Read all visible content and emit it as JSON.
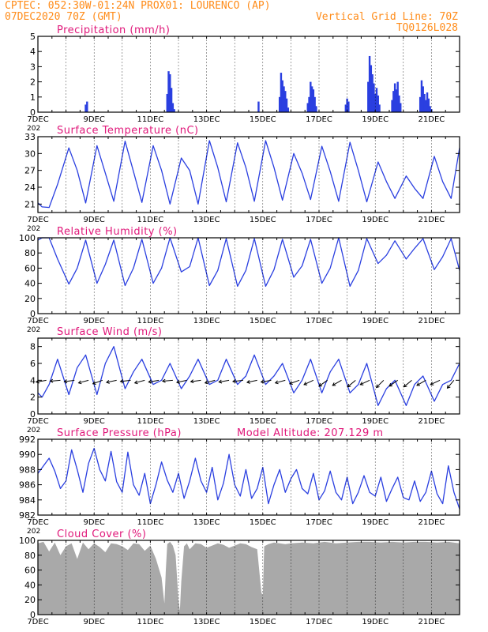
{
  "header": {
    "line1": "CPTEC:   052:30W-01:24N  PROX01: LOURENCO (AP)",
    "line2_left": "07DEC2020 70Z (GMT)",
    "line2_right": "Vertical Grid Line: 70Z",
    "line3_right": "TQ0126L028"
  },
  "colors": {
    "header": "#ff8c1a",
    "title": "#e0187a",
    "series": "#2a3fe0",
    "cloud": "#a9a9a9",
    "frame": "#000000",
    "grid": "#000000"
  },
  "x_axis": {
    "start_day": 7,
    "end_day": 22,
    "tick_labels": [
      "7DEC",
      "9DEC",
      "11DEC",
      "13DEC",
      "15DEC",
      "17DEC",
      "19DEC",
      "21DEC"
    ],
    "tick_days": [
      7,
      9,
      11,
      13,
      15,
      17,
      19,
      21
    ],
    "clipped_year_label": "202"
  },
  "chart_data": [
    {
      "id": "precip",
      "type": "bar",
      "title": "Precipitation (mm/h)",
      "ylim": [
        0,
        5
      ],
      "yticks": [
        0,
        1,
        2,
        3,
        4,
        5
      ],
      "x": [
        8.7,
        8.75,
        11.6,
        11.65,
        11.7,
        11.75,
        11.8,
        11.85,
        14.85,
        15.6,
        15.65,
        15.7,
        15.75,
        15.8,
        15.85,
        15.9,
        16.6,
        16.65,
        16.7,
        16.75,
        16.8,
        16.85,
        16.9,
        17.95,
        18.0,
        18.05,
        18.75,
        18.8,
        18.85,
        18.9,
        18.95,
        19.0,
        19.05,
        19.1,
        19.15,
        19.6,
        19.65,
        19.7,
        19.75,
        19.8,
        19.85,
        19.9,
        20.6,
        20.65,
        20.7,
        20.75,
        20.8,
        20.85,
        20.9,
        20.95,
        21.0
      ],
      "values": [
        0.5,
        0.7,
        1.2,
        2.7,
        2.5,
        1.6,
        0.6,
        0.2,
        0.7,
        1.0,
        2.6,
        2.1,
        1.7,
        1.4,
        0.9,
        0.3,
        0.6,
        1.0,
        2.0,
        1.7,
        1.5,
        1.0,
        0.4,
        0.5,
        0.9,
        0.7,
        2.0,
        3.7,
        3.1,
        2.5,
        1.9,
        1.2,
        1.6,
        1.1,
        0.5,
        0.8,
        1.4,
        1.9,
        1.5,
        2.0,
        1.1,
        0.6,
        1.0,
        2.1,
        1.7,
        1.2,
        0.8,
        1.3,
        0.9,
        0.4,
        0.2
      ]
    },
    {
      "id": "temp",
      "type": "line",
      "title": "Surface Temperature (nC)",
      "ylim": [
        19.5,
        33
      ],
      "yticks": [
        21,
        24,
        27,
        30,
        33
      ],
      "x": [
        7.0,
        7.15,
        7.4,
        7.7,
        8.1,
        8.4,
        8.7,
        9.1,
        9.4,
        9.7,
        10.1,
        10.4,
        10.7,
        11.1,
        11.4,
        11.7,
        12.1,
        12.4,
        12.7,
        13.1,
        13.4,
        13.7,
        14.1,
        14.4,
        14.7,
        15.1,
        15.4,
        15.7,
        16.1,
        16.4,
        16.7,
        17.1,
        17.4,
        17.7,
        18.1,
        18.4,
        18.7,
        19.1,
        19.4,
        19.7,
        20.1,
        20.4,
        20.7,
        21.1,
        21.4,
        21.7,
        22.0
      ],
      "values": [
        21.2,
        20.5,
        20.4,
        24.5,
        31.0,
        27.0,
        21.2,
        31.4,
        26.5,
        21.5,
        32.2,
        26.8,
        21.3,
        31.4,
        27.0,
        21.0,
        29.2,
        27.0,
        21.0,
        32.3,
        27.5,
        21.4,
        31.9,
        27.5,
        21.5,
        32.3,
        27.5,
        21.7,
        30.0,
        26.5,
        21.8,
        31.3,
        26.8,
        21.5,
        32.0,
        27.0,
        21.4,
        28.5,
        25.0,
        22.0,
        26.0,
        23.8,
        22.0,
        29.5,
        25.0,
        22.0,
        31.0
      ]
    },
    {
      "id": "rh",
      "type": "line",
      "title": "Relative Humidity (%)",
      "ylim": [
        0,
        100
      ],
      "yticks": [
        0,
        20,
        40,
        60,
        80,
        100
      ],
      "x": [
        7.0,
        7.15,
        7.4,
        7.7,
        8.1,
        8.4,
        8.7,
        9.1,
        9.4,
        9.7,
        10.1,
        10.4,
        10.7,
        11.1,
        11.4,
        11.7,
        12.1,
        12.4,
        12.7,
        13.1,
        13.4,
        13.7,
        14.1,
        14.4,
        14.7,
        15.1,
        15.4,
        15.7,
        16.1,
        16.4,
        16.7,
        17.1,
        17.4,
        17.7,
        18.1,
        18.4,
        18.7,
        19.1,
        19.4,
        19.7,
        20.1,
        20.4,
        20.7,
        21.1,
        21.4,
        21.7,
        22.0
      ],
      "values": [
        97,
        100,
        100,
        72,
        39,
        60,
        97,
        40,
        65,
        97,
        37,
        60,
        98,
        40,
        60,
        100,
        55,
        62,
        100,
        37,
        57,
        99,
        36,
        57,
        99,
        36,
        58,
        98,
        48,
        63,
        98,
        40,
        60,
        100,
        36,
        57,
        99,
        66,
        77,
        96,
        72,
        86,
        99,
        58,
        75,
        99,
        57
      ]
    },
    {
      "id": "wind",
      "type": "line",
      "title": "Surface Wind (m/s)",
      "ylim": [
        0,
        9
      ],
      "yticks": [
        0,
        2,
        4,
        6,
        8
      ],
      "x": [
        7.0,
        7.15,
        7.4,
        7.7,
        8.1,
        8.4,
        8.7,
        9.1,
        9.4,
        9.7,
        10.1,
        10.4,
        10.7,
        11.1,
        11.4,
        11.7,
        12.1,
        12.4,
        12.7,
        13.1,
        13.4,
        13.7,
        14.1,
        14.4,
        14.7,
        15.1,
        15.4,
        15.7,
        16.1,
        16.4,
        16.7,
        17.1,
        17.4,
        17.7,
        18.1,
        18.4,
        18.7,
        19.1,
        19.4,
        19.7,
        20.1,
        20.4,
        20.7,
        21.1,
        21.4,
        21.7,
        22.0
      ],
      "values": [
        2.5,
        2.0,
        3.5,
        6.5,
        2.3,
        5.5,
        7.0,
        2.3,
        6.0,
        8.0,
        3.0,
        5.0,
        6.5,
        3.5,
        4.0,
        6.0,
        3.0,
        4.5,
        6.5,
        3.5,
        4.0,
        6.5,
        3.5,
        4.5,
        7.0,
        3.5,
        4.5,
        6.0,
        2.5,
        4.0,
        6.5,
        2.5,
        5.0,
        6.5,
        2.5,
        3.5,
        6.0,
        1.0,
        3.0,
        4.0,
        1.0,
        3.5,
        4.5,
        1.5,
        3.5,
        4.0,
        6.0
      ],
      "arrow_days": [
        7.3,
        7.8,
        8.3,
        8.8,
        9.3,
        9.8,
        10.3,
        10.8,
        11.3,
        11.8,
        12.3,
        12.8,
        13.3,
        13.8,
        14.3,
        14.8,
        15.3,
        15.8,
        16.3,
        16.8,
        17.3,
        17.8,
        18.3,
        18.8,
        19.3,
        19.8,
        20.3,
        20.8,
        21.3,
        21.8
      ],
      "arrow_dirs": [
        190,
        185,
        188,
        195,
        200,
        192,
        187,
        195,
        190,
        185,
        192,
        188,
        195,
        190,
        187,
        192,
        190,
        195,
        200,
        205,
        215,
        210,
        220,
        205,
        225,
        215,
        220,
        210,
        205,
        230
      ]
    },
    {
      "id": "pressure",
      "type": "line",
      "title": "Surface Pressure (hPa)",
      "subtitle": "Model Altitude: 207.129 m",
      "ylim": [
        982,
        992
      ],
      "yticks": [
        982,
        984,
        986,
        988,
        990,
        992
      ],
      "x": [
        7.0,
        7.2,
        7.4,
        7.6,
        7.8,
        8.0,
        8.2,
        8.4,
        8.6,
        8.8,
        9.0,
        9.2,
        9.4,
        9.6,
        9.8,
        10.0,
        10.2,
        10.4,
        10.6,
        10.8,
        11.0,
        11.2,
        11.4,
        11.6,
        11.8,
        12.0,
        12.2,
        12.4,
        12.6,
        12.8,
        13.0,
        13.2,
        13.4,
        13.6,
        13.8,
        14.0,
        14.2,
        14.4,
        14.6,
        14.8,
        15.0,
        15.2,
        15.4,
        15.6,
        15.8,
        16.0,
        16.2,
        16.4,
        16.6,
        16.8,
        17.0,
        17.2,
        17.4,
        17.6,
        17.8,
        18.0,
        18.2,
        18.4,
        18.6,
        18.8,
        19.0,
        19.2,
        19.4,
        19.6,
        19.8,
        20.0,
        20.2,
        20.4,
        20.6,
        20.8,
        21.0,
        21.2,
        21.4,
        21.6,
        21.8,
        22.0
      ],
      "values": [
        987.5,
        988.5,
        989.5,
        987.8,
        985.5,
        986.5,
        990.6,
        988.0,
        985.0,
        988.8,
        990.8,
        988.0,
        986.5,
        990.4,
        986.4,
        985.0,
        990.3,
        986.0,
        984.6,
        987.5,
        983.5,
        986.0,
        989.0,
        986.6,
        985.0,
        987.5,
        984.2,
        986.5,
        989.5,
        986.5,
        985.0,
        988.3,
        984.0,
        986.2,
        990.0,
        986.0,
        984.5,
        988.0,
        984.2,
        985.5,
        988.3,
        983.5,
        986.0,
        988.0,
        985.0,
        986.8,
        988.0,
        985.5,
        984.8,
        987.5,
        984.0,
        985.2,
        987.8,
        985.0,
        984.0,
        987.0,
        983.5,
        985.0,
        987.2,
        985.0,
        984.5,
        987.0,
        983.8,
        985.5,
        987.0,
        984.3,
        984.0,
        986.5,
        983.8,
        985.0,
        987.8,
        984.8,
        983.5,
        988.5,
        985.0,
        982.8
      ]
    },
    {
      "id": "cloud",
      "type": "area",
      "title": "Cloud Cover (%)",
      "ylim": [
        0,
        100
      ],
      "yticks": [
        0,
        20,
        40,
        60,
        80,
        100
      ],
      "x": [
        7.0,
        7.2,
        7.4,
        7.6,
        7.8,
        8.0,
        8.2,
        8.4,
        8.6,
        8.8,
        9.0,
        9.2,
        9.4,
        9.6,
        9.8,
        10.0,
        10.2,
        10.4,
        10.6,
        10.8,
        11.0,
        11.2,
        11.4,
        11.5,
        11.55,
        11.6,
        11.7,
        11.8,
        11.9,
        12.0,
        12.05,
        12.1,
        12.2,
        12.3,
        12.4,
        12.6,
        12.8,
        13.0,
        13.2,
        13.4,
        13.6,
        13.8,
        14.0,
        14.2,
        14.4,
        14.6,
        14.8,
        14.95,
        15.0,
        15.05,
        15.2,
        15.4,
        15.6,
        15.8,
        16.0,
        16.4,
        16.8,
        17.2,
        17.6,
        18.0,
        18.4,
        18.8,
        19.2,
        19.6,
        20.0,
        20.4,
        20.8,
        21.2,
        21.6,
        22.0
      ],
      "values": [
        96,
        98,
        85,
        97,
        80,
        92,
        96,
        75,
        97,
        88,
        96,
        91,
        84,
        96,
        95,
        92,
        87,
        96,
        95,
        86,
        93,
        75,
        50,
        15,
        60,
        95,
        98,
        93,
        80,
        20,
        5,
        45,
        92,
        96,
        88,
        96,
        95,
        90,
        93,
        96,
        94,
        90,
        93,
        96,
        95,
        91,
        88,
        30,
        25,
        92,
        95,
        97,
        96,
        95,
        96,
        97,
        96,
        98,
        96,
        97,
        98,
        98,
        97,
        98,
        97,
        98,
        98,
        97,
        98,
        96
      ]
    }
  ]
}
